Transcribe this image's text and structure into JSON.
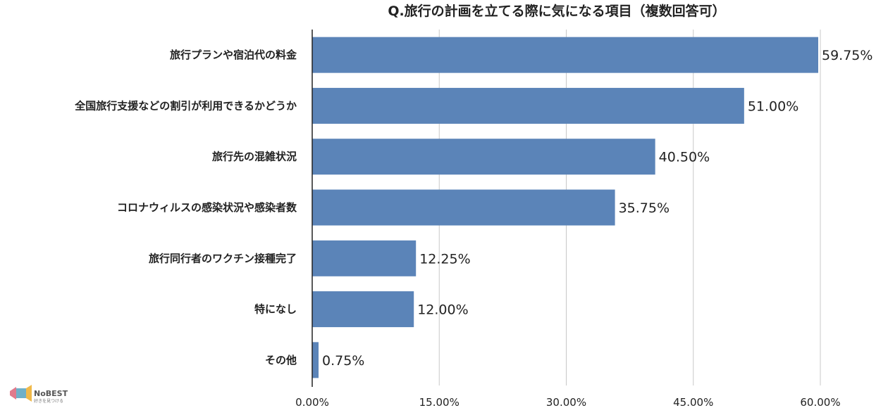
{
  "chart_data": {
    "type": "bar",
    "orientation": "horizontal",
    "title": "Q.旅行の計画を立てる際に気になる項目（複数回答可）",
    "categories": [
      "旅行プランや宿泊代の料金",
      "全国旅行支援などの割引が利用できるかどうか",
      "旅行先の混雑状況",
      "コロナウィルスの感染状況や感染者数",
      "旅行同行者のワクチン接種完了",
      "特になし",
      "その他"
    ],
    "values": [
      59.75,
      51.0,
      40.5,
      35.75,
      12.25,
      12.0,
      0.75
    ],
    "value_labels": [
      "59.75%",
      "51.00%",
      "40.50%",
      "35.75%",
      "12.25%",
      "12.00%",
      "0.75%"
    ],
    "xlim": [
      0,
      60
    ],
    "xticks": [
      0,
      15,
      30,
      45,
      60
    ],
    "xtick_labels": [
      "0.00%",
      "15.00%",
      "30.00%",
      "45.00%",
      "60.00%"
    ],
    "xlabel": "",
    "ylabel": "",
    "grid": "vertical",
    "legend": "none",
    "colors": {
      "bar": "#5b84b8",
      "grid": "#c8c8c8",
      "axis": "#222222",
      "text": "#222222"
    }
  },
  "logo": {
    "name": "NoBEST",
    "tagline": "好きを見つける",
    "icon": "megaphone-icon"
  }
}
